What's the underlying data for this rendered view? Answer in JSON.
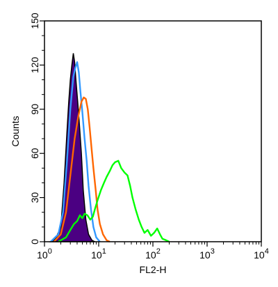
{
  "chart_data": {
    "type": "area",
    "title": "",
    "xlabel": "FL2-H",
    "ylabel": "Counts",
    "x_scale": "log",
    "xlim": [
      1,
      10000
    ],
    "ylim": [
      0,
      150
    ],
    "grid": false,
    "legend": "none",
    "y_ticks": [
      "0",
      "30",
      "60",
      "90",
      "120",
      "150"
    ],
    "x_ticks": [
      {
        "base": "10",
        "exp": "0",
        "value": 1
      },
      {
        "base": "10",
        "exp": "1",
        "value": 10
      },
      {
        "base": "10",
        "exp": "2",
        "value": 100
      },
      {
        "base": "10",
        "exp": "3",
        "value": 1000
      },
      {
        "base": "10",
        "exp": "4",
        "value": 10000
      }
    ],
    "series": [
      {
        "color": "#4B0082",
        "fill": "#4B0082",
        "outline": "#000000",
        "points": [
          [
            1.3,
            0
          ],
          [
            1.6,
            2
          ],
          [
            2.0,
            10
          ],
          [
            2.3,
            40
          ],
          [
            2.6,
            75
          ],
          [
            2.8,
            95
          ],
          [
            3.0,
            110
          ],
          [
            3.2,
            120
          ],
          [
            3.4,
            128
          ],
          [
            3.6,
            122
          ],
          [
            3.8,
            110
          ],
          [
            4.1,
            95
          ],
          [
            4.4,
            80
          ],
          [
            4.8,
            60
          ],
          [
            5.2,
            35
          ],
          [
            5.8,
            15
          ],
          [
            6.5,
            5
          ],
          [
            7.5,
            1
          ],
          [
            8.5,
            0
          ]
        ]
      },
      {
        "color": "#3399FF",
        "points": [
          [
            1.3,
            0
          ],
          [
            1.8,
            5
          ],
          [
            2.2,
            20
          ],
          [
            2.6,
            55
          ],
          [
            3.0,
            90
          ],
          [
            3.4,
            112
          ],
          [
            3.7,
            118
          ],
          [
            4.0,
            122
          ],
          [
            4.3,
            115
          ],
          [
            4.6,
            102
          ],
          [
            5.0,
            88
          ],
          [
            5.5,
            70
          ],
          [
            6.0,
            55
          ],
          [
            6.5,
            38
          ],
          [
            7.2,
            22
          ],
          [
            8.0,
            10
          ],
          [
            9.0,
            3
          ],
          [
            10.5,
            0
          ]
        ]
      },
      {
        "color": "#FF6600",
        "points": [
          [
            1.5,
            0
          ],
          [
            2.0,
            5
          ],
          [
            2.5,
            20
          ],
          [
            3.0,
            45
          ],
          [
            3.6,
            70
          ],
          [
            4.2,
            85
          ],
          [
            4.8,
            95
          ],
          [
            5.3,
            98
          ],
          [
            5.8,
            97
          ],
          [
            6.3,
            90
          ],
          [
            6.8,
            78
          ],
          [
            7.4,
            63
          ],
          [
            8.0,
            50
          ],
          [
            8.8,
            35
          ],
          [
            9.5,
            22
          ],
          [
            10.5,
            12
          ],
          [
            12,
            5
          ],
          [
            14,
            1
          ],
          [
            16,
            0
          ]
        ]
      },
      {
        "color": "#00FF00",
        "points": [
          [
            1.8,
            0
          ],
          [
            2.5,
            3
          ],
          [
            3.0,
            8
          ],
          [
            3.5,
            12
          ],
          [
            4.0,
            14
          ],
          [
            4.5,
            18
          ],
          [
            5.0,
            16
          ],
          [
            5.5,
            19
          ],
          [
            6.2,
            18
          ],
          [
            7.0,
            15
          ],
          [
            7.8,
            17
          ],
          [
            8.5,
            22
          ],
          [
            9.5,
            28
          ],
          [
            11,
            35
          ],
          [
            12.5,
            40
          ],
          [
            14,
            44
          ],
          [
            16,
            48
          ],
          [
            18,
            52
          ],
          [
            20,
            54
          ],
          [
            23,
            55
          ],
          [
            26,
            50
          ],
          [
            30,
            47
          ],
          [
            34,
            45
          ],
          [
            38,
            38
          ],
          [
            42,
            30
          ],
          [
            48,
            22
          ],
          [
            55,
            15
          ],
          [
            62,
            10
          ],
          [
            70,
            6
          ],
          [
            80,
            8
          ],
          [
            92,
            4
          ],
          [
            105,
            6
          ],
          [
            120,
            9
          ],
          [
            135,
            5
          ],
          [
            150,
            2
          ],
          [
            175,
            1
          ],
          [
            200,
            0
          ]
        ]
      }
    ]
  }
}
